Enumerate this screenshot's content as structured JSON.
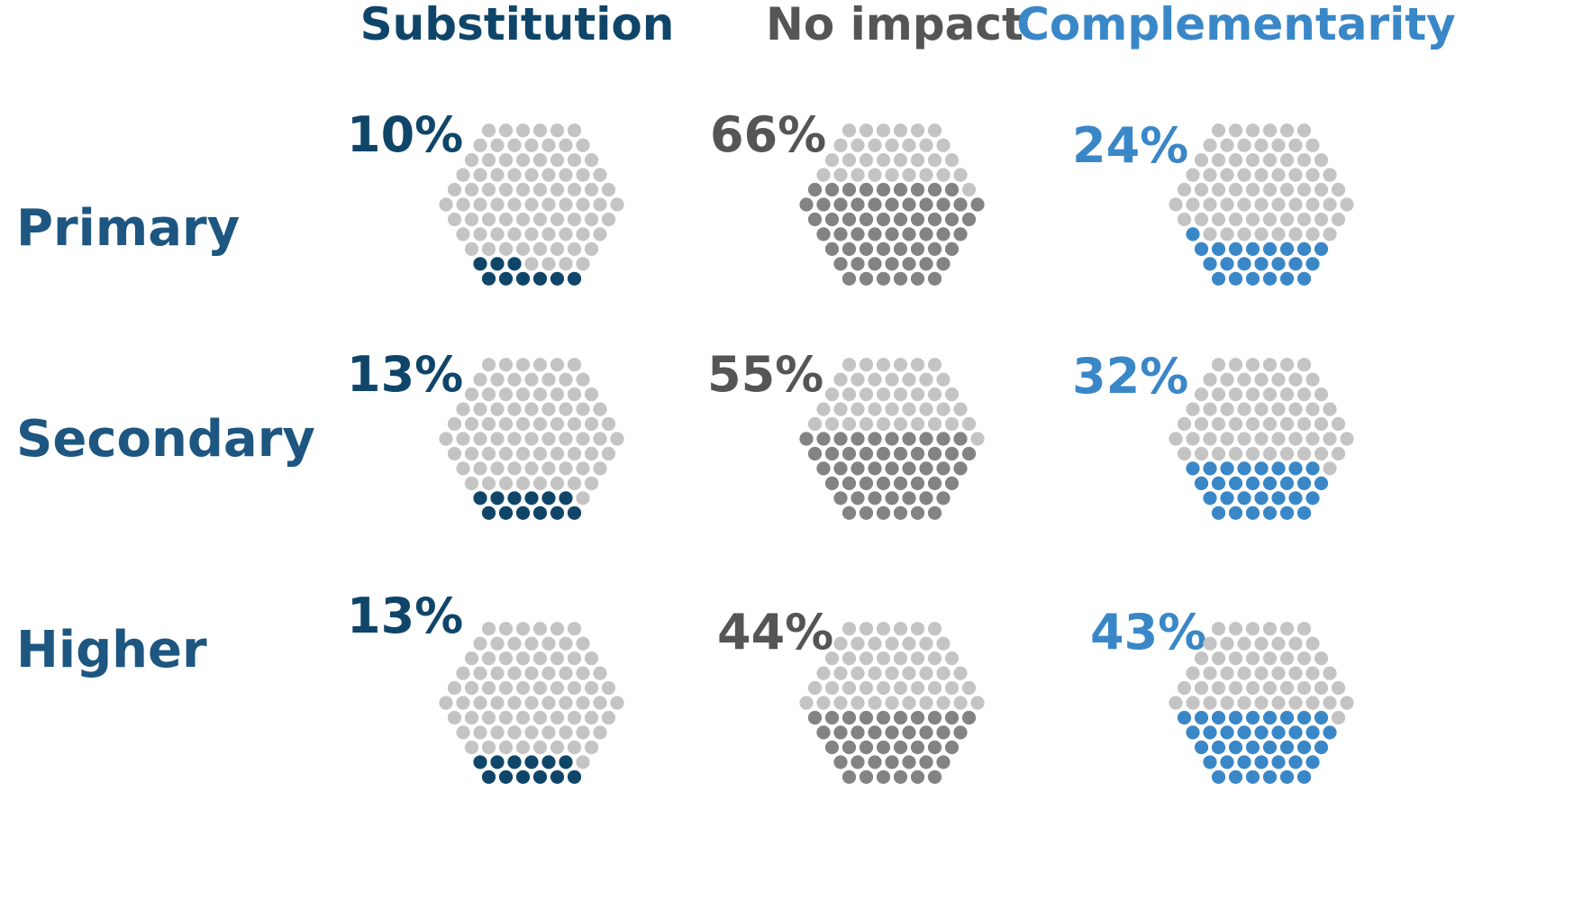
{
  "chart_data": {
    "type": "dot-matrix",
    "columns": [
      {
        "key": "substitution",
        "label": "Substitution",
        "color": "#0f4569"
      },
      {
        "key": "no_impact",
        "label": "No impact",
        "color": "#555555"
      },
      {
        "key": "complementarity",
        "label": "Complementarity",
        "color": "#3a87c8"
      }
    ],
    "rows": [
      {
        "key": "primary",
        "label": "Primary",
        "values": [
          10,
          66,
          24
        ]
      },
      {
        "key": "secondary",
        "label": "Secondary",
        "values": [
          13,
          55,
          32
        ]
      },
      {
        "key": "higher",
        "label": "Higher",
        "values": [
          13,
          44,
          43
        ]
      }
    ],
    "unit": "%",
    "colors": {
      "row_label": "#1d5680",
      "dot_background": "#c4c4c4",
      "dot_no_impact": "#838383"
    }
  }
}
